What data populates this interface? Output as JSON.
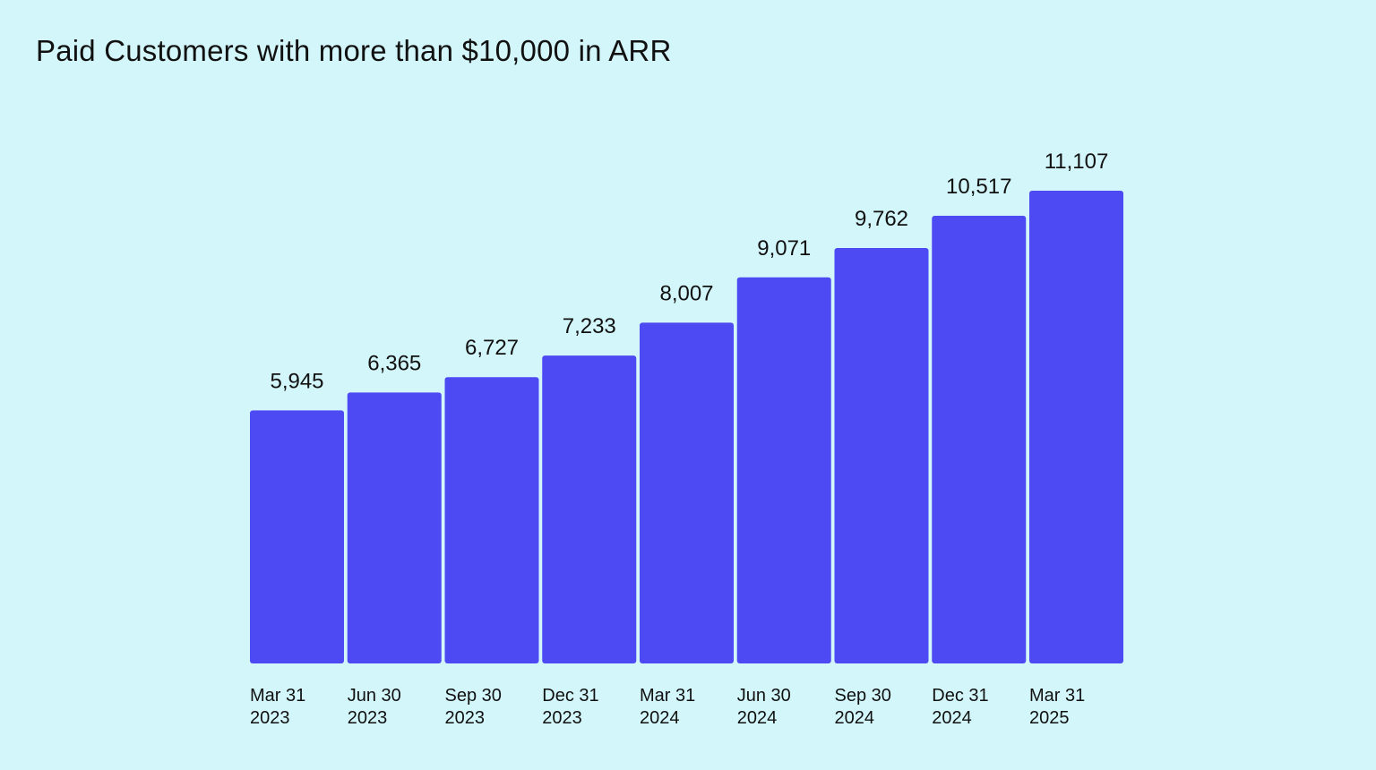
{
  "chart_data": {
    "type": "bar",
    "title": "Paid Customers with more than $10,000 in ARR",
    "xlabel": "",
    "ylabel": "",
    "categories": [
      [
        "Mar 31",
        "2023"
      ],
      [
        "Jun 30",
        "2023"
      ],
      [
        "Sep 30",
        "2023"
      ],
      [
        "Dec 31",
        "2023"
      ],
      [
        "Mar 31",
        "2024"
      ],
      [
        "Jun 30",
        "2024"
      ],
      [
        "Sep 30",
        "2024"
      ],
      [
        "Dec 31",
        "2024"
      ],
      [
        "Mar 31",
        "2025"
      ]
    ],
    "values": [
      5945,
      6365,
      6727,
      7233,
      8007,
      9071,
      9762,
      10517,
      11107
    ],
    "value_labels": [
      "5,945",
      "6,365",
      "6,727",
      "7,233",
      "8,007",
      "9,071",
      "9,762",
      "10,517",
      "11,107"
    ],
    "bar_color": "#4d4af4",
    "background_color": "#d3f6fa",
    "grid": false,
    "legend": "none"
  }
}
